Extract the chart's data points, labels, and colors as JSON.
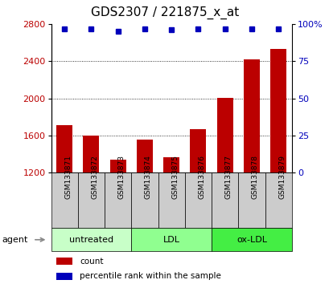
{
  "title": "GDS2307 / 221875_x_at",
  "samples": [
    "GSM133871",
    "GSM133872",
    "GSM133873",
    "GSM133874",
    "GSM133875",
    "GSM133876",
    "GSM133877",
    "GSM133878",
    "GSM133879"
  ],
  "counts": [
    1710,
    1600,
    1340,
    1560,
    1370,
    1670,
    2010,
    2420,
    2530
  ],
  "percentiles": [
    97,
    97,
    95,
    97,
    96,
    97,
    97,
    97,
    97
  ],
  "groups": [
    {
      "label": "untreated",
      "indices": [
        0,
        1,
        2
      ],
      "color": "#c8ffc8"
    },
    {
      "label": "LDL",
      "indices": [
        3,
        4,
        5
      ],
      "color": "#90ff90"
    },
    {
      "label": "ox-LDL",
      "indices": [
        6,
        7,
        8
      ],
      "color": "#44ee44"
    }
  ],
  "ylim_left": [
    1200,
    2800
  ],
  "ylim_right": [
    0,
    100
  ],
  "yticks_left": [
    1200,
    1600,
    2000,
    2400,
    2800
  ],
  "yticks_right": [
    0,
    25,
    50,
    75,
    100
  ],
  "bar_color": "#bb0000",
  "dot_color": "#0000bb",
  "bar_width": 0.6,
  "agent_label": "agent",
  "legend_count_label": "count",
  "legend_pct_label": "percentile rank within the sample",
  "sample_box_color": "#cccccc",
  "title_fontsize": 11,
  "tick_fontsize": 8,
  "sample_fontsize": 6.5,
  "group_fontsize": 8,
  "legend_fontsize": 7.5
}
